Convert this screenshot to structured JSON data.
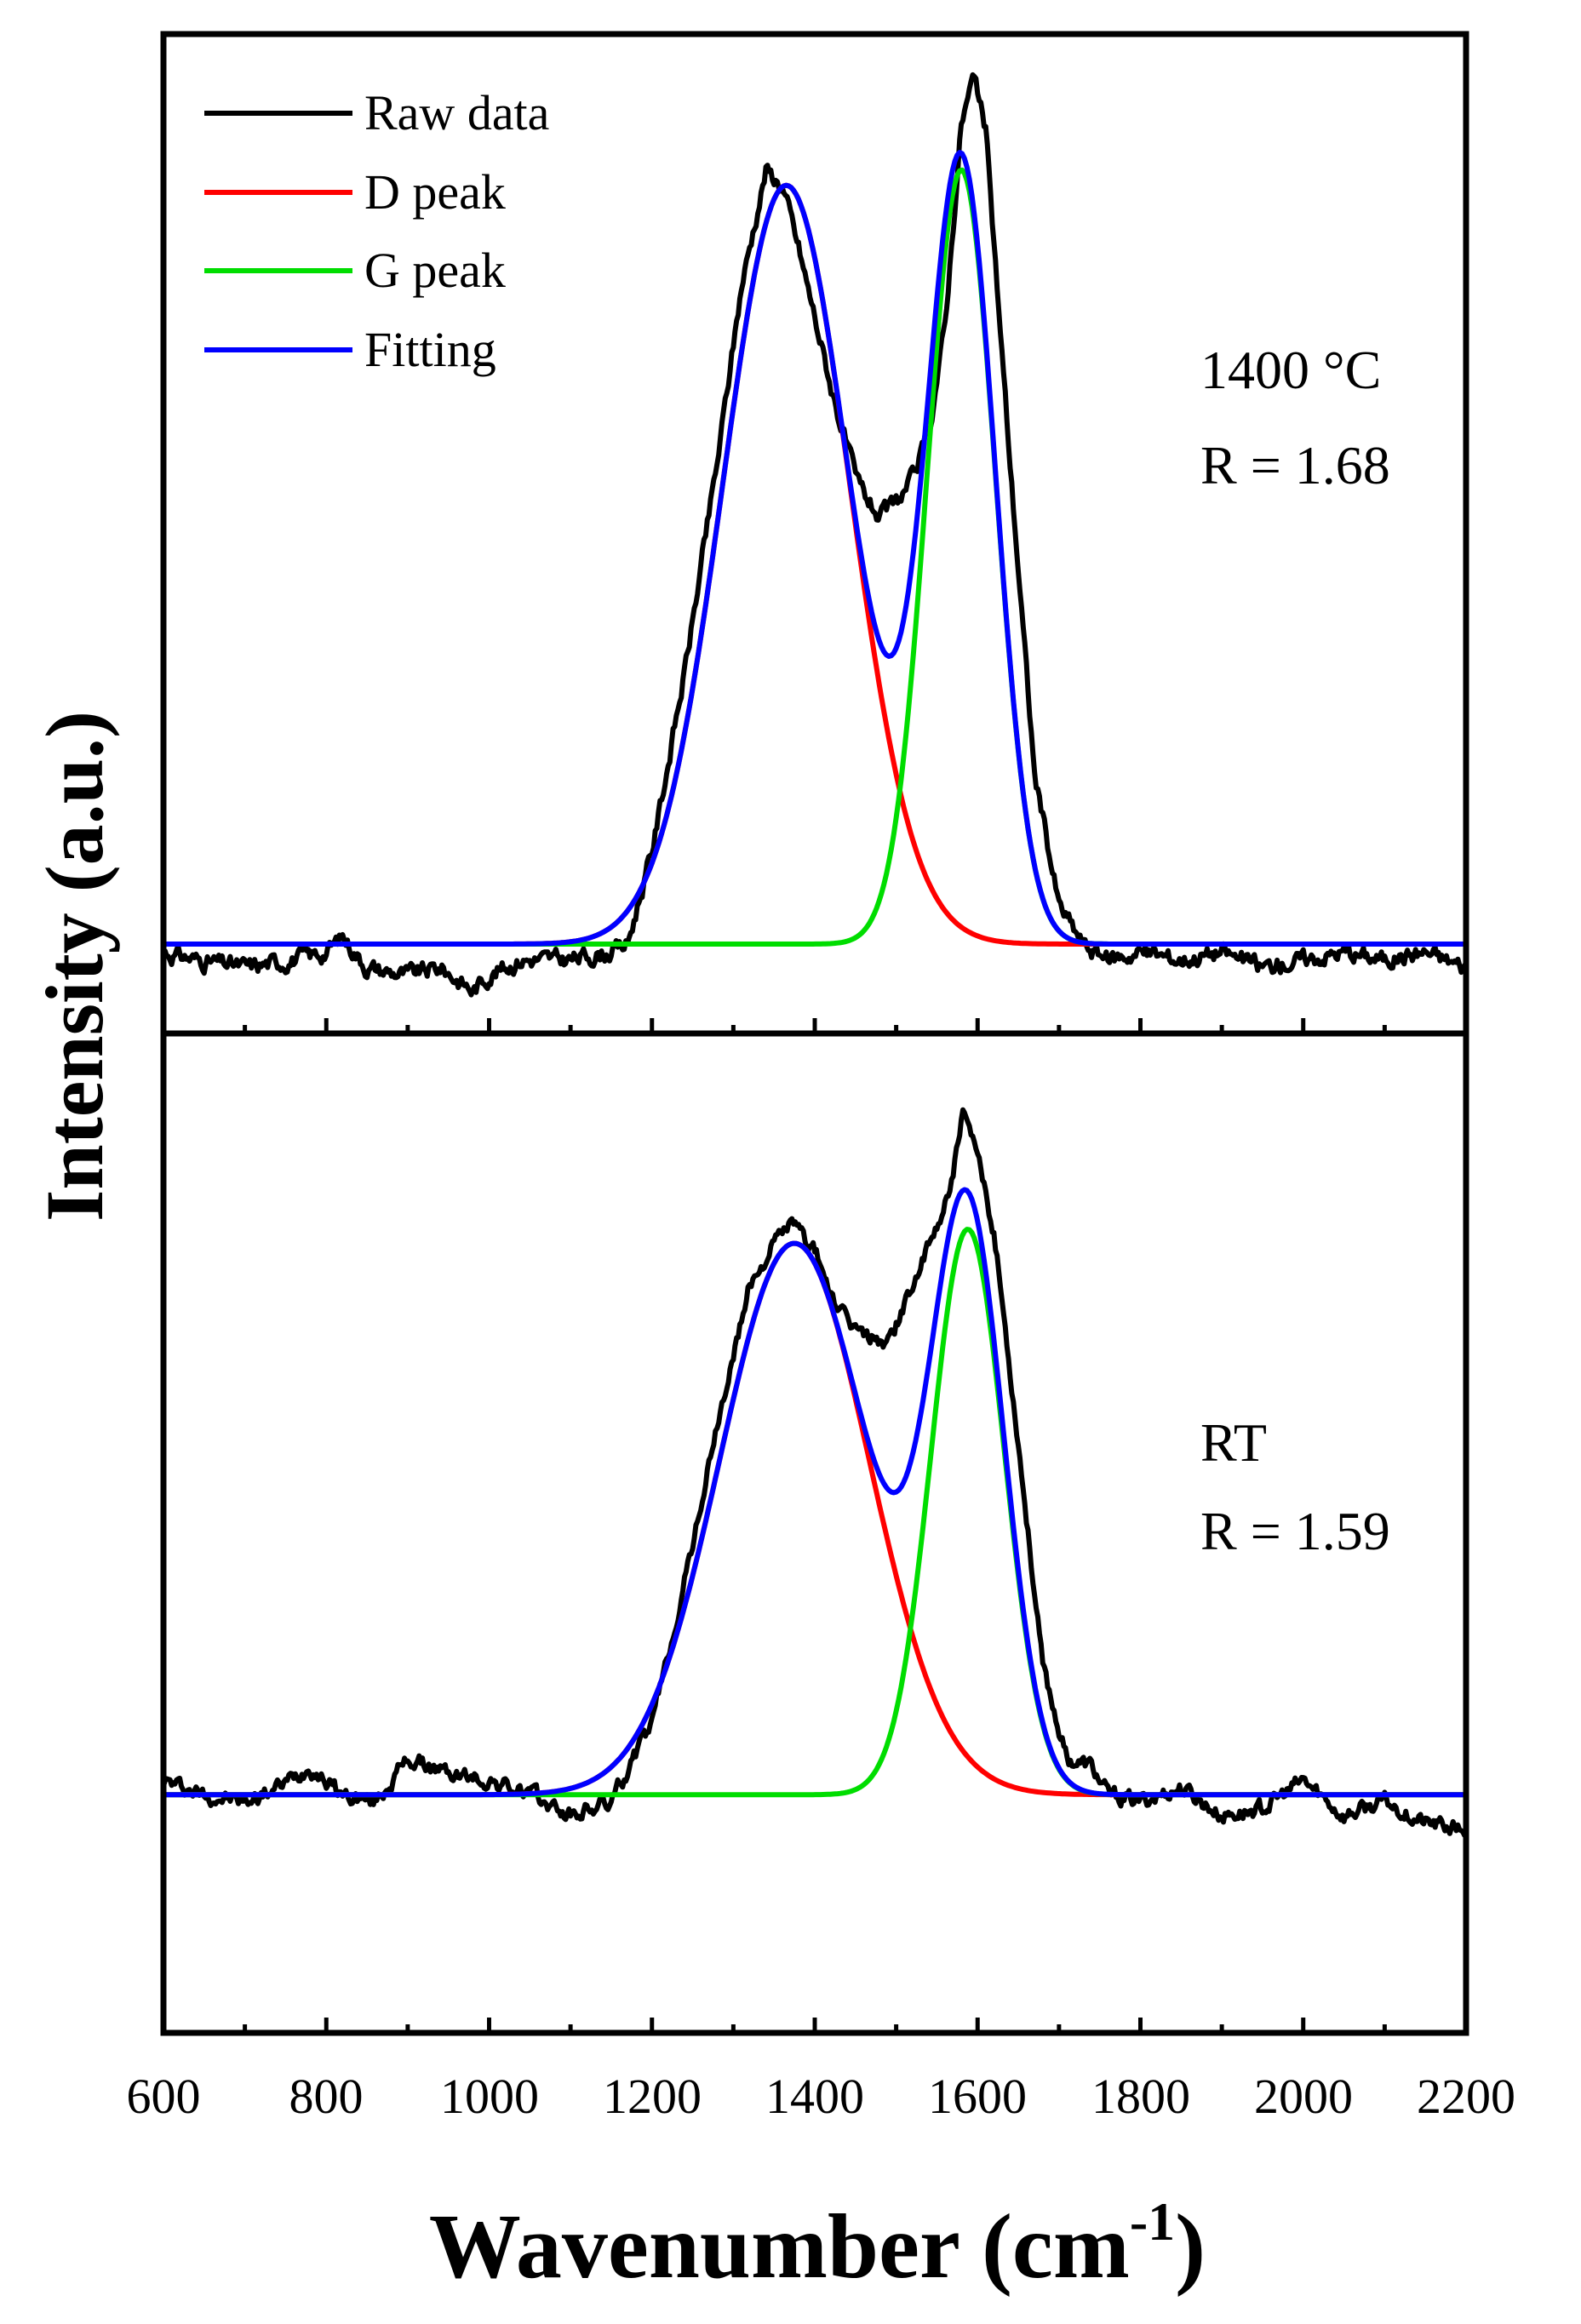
{
  "chart_data": {
    "type": "line",
    "xlabel": "Wavenumber (cm",
    "xlabel_sup": "-1",
    "xlabel_close": ")",
    "ylabel": "Intensity (a.u.)",
    "xlim": [
      600,
      2200
    ],
    "x_ticks": [
      "600",
      "800",
      "1000",
      "1200",
      "1400",
      "1600",
      "1800",
      "2000",
      "2200"
    ],
    "legend": [
      {
        "label": "Raw data",
        "color": "#000000"
      },
      {
        "label": "D peak",
        "color": "#ff0000"
      },
      {
        "label": "G peak",
        "color": "#00dd00"
      },
      {
        "label": "Fitting",
        "color": "#0000ff"
      }
    ],
    "panels": [
      {
        "name": "top",
        "annotation_line1": "1400 °C",
        "annotation_line2": "R = 1.68",
        "ylim": [
          -0.1,
          1.16
        ],
        "D_peak": {
          "center": 1365,
          "amplitude": 0.98,
          "sigma": 78
        },
        "G_peak": {
          "center": 1580,
          "amplitude": 1.0,
          "sigma": 42
        },
        "raw_points": [
          [
            600,
            -0.01
          ],
          [
            640,
            -0.02
          ],
          [
            700,
            -0.03
          ],
          [
            760,
            -0.02
          ],
          [
            800,
            -0.01
          ],
          [
            820,
            0.01
          ],
          [
            850,
            -0.03
          ],
          [
            900,
            -0.04
          ],
          [
            940,
            -0.03
          ],
          [
            980,
            -0.06
          ],
          [
            1000,
            -0.04
          ],
          [
            1040,
            -0.02
          ],
          [
            1100,
            -0.02
          ],
          [
            1150,
            -0.01
          ],
          [
            1170,
            0.0
          ],
          [
            1200,
            0.12
          ],
          [
            1240,
            0.35
          ],
          [
            1280,
            0.62
          ],
          [
            1310,
            0.85
          ],
          [
            1340,
            1.0
          ],
          [
            1360,
            0.98
          ],
          [
            1380,
            0.9
          ],
          [
            1420,
            0.72
          ],
          [
            1450,
            0.6
          ],
          [
            1480,
            0.55
          ],
          [
            1500,
            0.57
          ],
          [
            1520,
            0.6
          ],
          [
            1540,
            0.66
          ],
          [
            1560,
            0.8
          ],
          [
            1580,
            1.06
          ],
          [
            1595,
            1.12
          ],
          [
            1610,
            1.05
          ],
          [
            1640,
            0.62
          ],
          [
            1670,
            0.22
          ],
          [
            1700,
            0.05
          ],
          [
            1730,
            0.0
          ],
          [
            1760,
            -0.02
          ],
          [
            1800,
            -0.01
          ],
          [
            1850,
            -0.02
          ],
          [
            1900,
            -0.01
          ],
          [
            1950,
            -0.03
          ],
          [
            2000,
            -0.02
          ],
          [
            2050,
            -0.01
          ],
          [
            2100,
            -0.02
          ],
          [
            2150,
            -0.01
          ],
          [
            2200,
            -0.03
          ]
        ]
      },
      {
        "name": "bottom",
        "annotation_line1": "RT",
        "annotation_line2": "R = 1.59",
        "ylim": [
          -0.32,
          1.06
        ],
        "D_peak": {
          "center": 1375,
          "amplitude": 0.78,
          "sigma": 92
        },
        "G_peak": {
          "center": 1588,
          "amplitude": 0.8,
          "sigma": 45
        },
        "raw_points": [
          [
            600,
            0.02
          ],
          [
            650,
            0.0
          ],
          [
            700,
            -0.01
          ],
          [
            740,
            0.01
          ],
          [
            780,
            0.04
          ],
          [
            820,
            0.0
          ],
          [
            860,
            -0.01
          ],
          [
            900,
            0.05
          ],
          [
            950,
            0.03
          ],
          [
            1000,
            0.02
          ],
          [
            1050,
            0.0
          ],
          [
            1100,
            -0.03
          ],
          [
            1150,
            -0.01
          ],
          [
            1200,
            0.1
          ],
          [
            1240,
            0.3
          ],
          [
            1280,
            0.52
          ],
          [
            1320,
            0.72
          ],
          [
            1350,
            0.78
          ],
          [
            1370,
            0.81
          ],
          [
            1400,
            0.77
          ],
          [
            1430,
            0.68
          ],
          [
            1460,
            0.65
          ],
          [
            1490,
            0.64
          ],
          [
            1520,
            0.72
          ],
          [
            1550,
            0.8
          ],
          [
            1570,
            0.88
          ],
          [
            1582,
            0.96
          ],
          [
            1600,
            0.9
          ],
          [
            1620,
            0.8
          ],
          [
            1650,
            0.5
          ],
          [
            1680,
            0.18
          ],
          [
            1710,
            0.05
          ],
          [
            1740,
            0.04
          ],
          [
            1760,
            0.0
          ],
          [
            1800,
            -0.01
          ],
          [
            1850,
            0.01
          ],
          [
            1900,
            -0.03
          ],
          [
            1950,
            -0.02
          ],
          [
            2000,
            0.02
          ],
          [
            2050,
            -0.03
          ],
          [
            2100,
            -0.01
          ],
          [
            2150,
            -0.04
          ],
          [
            2200,
            -0.05
          ]
        ]
      }
    ]
  }
}
